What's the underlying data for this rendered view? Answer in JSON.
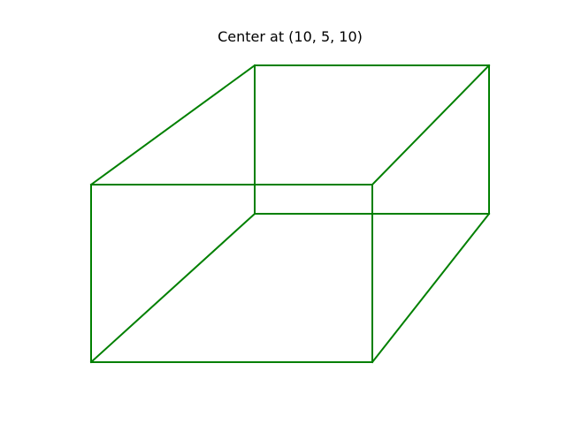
{
  "figure": {
    "title": "Center at (10, 5, 10)"
  },
  "cuboid": {
    "edge_color": "#008000",
    "vertex_count": 8,
    "edge_count": 12
  }
}
